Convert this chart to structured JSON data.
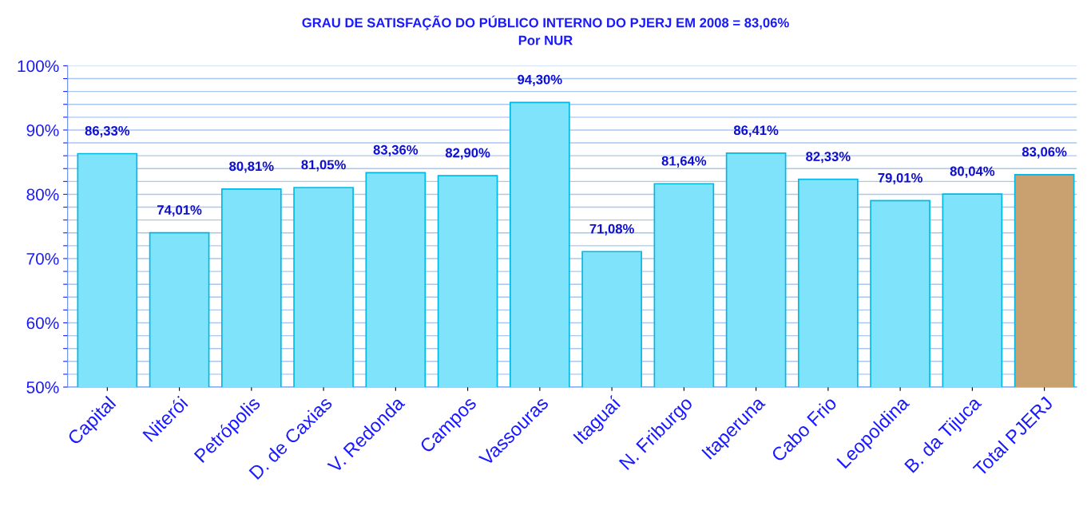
{
  "chart_data": {
    "type": "bar",
    "title": "GRAU DE SATISFAÇÃO DO PÚBLICO INTERNO DO PJERJ EM 2008 = 83,06%",
    "subtitle": "Por NUR",
    "categories": [
      "Capital",
      "Niterói",
      "Petrópolis",
      "D. de Caxias",
      "V. Redonda",
      "Campos",
      "Vassouras",
      "Itaguaí",
      "N. Friburgo",
      "Itaperuna",
      "Cabo Frio",
      "Leopoldina",
      "B. da Tijuca",
      "Total PJERJ"
    ],
    "values": [
      86.33,
      74.01,
      80.81,
      81.05,
      83.36,
      82.9,
      94.3,
      71.08,
      81.64,
      86.41,
      82.33,
      79.01,
      80.04,
      83.06
    ],
    "value_labels": [
      "86,33%",
      "74,01%",
      "80,81%",
      "81,05%",
      "83,36%",
      "82,90%",
      "94,30%",
      "71,08%",
      "81,64%",
      "86,41%",
      "82,33%",
      "79,01%",
      "80,04%",
      "83,06%"
    ],
    "colors": [
      "#7fe3fb",
      "#7fe3fb",
      "#7fe3fb",
      "#7fe3fb",
      "#7fe3fb",
      "#7fe3fb",
      "#7fe3fb",
      "#7fe3fb",
      "#7fe3fb",
      "#7fe3fb",
      "#7fe3fb",
      "#7fe3fb",
      "#7fe3fb",
      "#c9a070"
    ],
    "ylim": [
      50,
      100
    ],
    "yticks": [
      {
        "value": 50,
        "label": "50%"
      },
      {
        "value": 52,
        "label": null
      },
      {
        "value": 54,
        "label": null
      },
      {
        "value": 56,
        "label": null
      },
      {
        "value": 58,
        "label": null
      },
      {
        "value": 60,
        "label": "60%"
      },
      {
        "value": 62,
        "label": null
      },
      {
        "value": 64,
        "label": null
      },
      {
        "value": 66,
        "label": null
      },
      {
        "value": 68,
        "label": null
      },
      {
        "value": 70,
        "label": "70%"
      },
      {
        "value": 72,
        "label": null
      },
      {
        "value": 74,
        "label": null
      },
      {
        "value": 76,
        "label": null
      },
      {
        "value": 78,
        "label": null
      },
      {
        "value": 80,
        "label": "80%"
      },
      {
        "value": 82,
        "label": null
      },
      {
        "value": 84,
        "label": null
      },
      {
        "value": 86,
        "label": null
      },
      {
        "value": 88,
        "label": null
      },
      {
        "value": 90,
        "label": "90%"
      },
      {
        "value": 92,
        "label": null
      },
      {
        "value": 94,
        "label": null
      },
      {
        "value": 96,
        "label": null
      },
      {
        "value": 98,
        "label": null
      },
      {
        "value": 100,
        "label": "100%"
      }
    ],
    "grid": "y",
    "legend": false
  }
}
